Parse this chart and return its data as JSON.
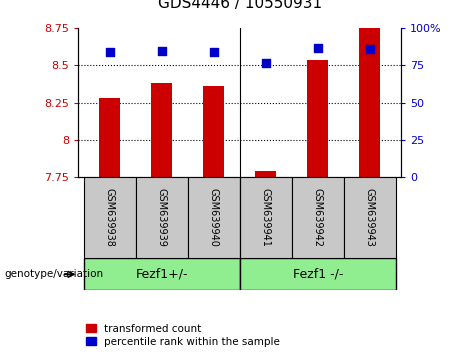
{
  "title": "GDS4446 / 10550931",
  "samples": [
    "GSM639938",
    "GSM639939",
    "GSM639940",
    "GSM639941",
    "GSM639942",
    "GSM639943"
  ],
  "red_values": [
    8.28,
    8.38,
    8.36,
    7.79,
    8.54,
    8.9
  ],
  "blue_values": [
    84,
    85,
    84,
    77,
    87,
    86
  ],
  "ylim_left": [
    7.75,
    8.75
  ],
  "ylim_right": [
    0,
    100
  ],
  "yticks_left": [
    7.75,
    8.0,
    8.25,
    8.5,
    8.75
  ],
  "ytick_labels_left": [
    "7.75",
    "8",
    "8.25",
    "8.5",
    "8.75"
  ],
  "yticks_right": [
    0,
    25,
    50,
    75,
    100
  ],
  "ytick_labels_right": [
    "0",
    "25",
    "50",
    "75",
    "100%"
  ],
  "group1_label": "Fezf1+/-",
  "group2_label": "Fezf1 -/-",
  "genotype_label": "genotype/variation",
  "legend_red": "transformed count",
  "legend_blue": "percentile rank within the sample",
  "red_color": "#CC0000",
  "blue_color": "#0000CC",
  "bar_width": 0.4,
  "tick_area_color": "#C8C8C8",
  "group_box_color": "#90EE90"
}
